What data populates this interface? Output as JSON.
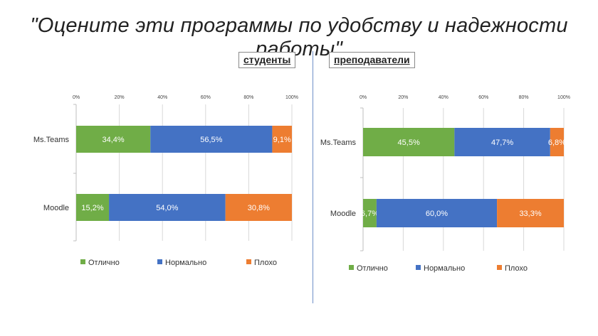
{
  "title": "\"Оцените эти программы по удобству и надежности работы\"",
  "colors": {
    "excellent": "#70ad47",
    "normal": "#4472c4",
    "bad": "#ed7d31"
  },
  "chart_data": [
    {
      "type": "bar",
      "stacked": "100%",
      "orientation": "horizontal",
      "title": "студенты",
      "x_ticks": [
        "0%",
        "20%",
        "40%",
        "60%",
        "80%",
        "100%"
      ],
      "xlim": [
        0,
        100
      ],
      "categories": [
        "Ms.Teams",
        "Moodle"
      ],
      "series": [
        {
          "name": "Отлично",
          "values": [
            34.4,
            15.2
          ],
          "labels": [
            "34,4%",
            "15,2%"
          ]
        },
        {
          "name": "Нормально",
          "values": [
            56.5,
            54.0
          ],
          "labels": [
            "56,5%",
            "54,0%"
          ]
        },
        {
          "name": "Плохо",
          "values": [
            9.1,
            30.8
          ],
          "labels": [
            "9,1%",
            "30,8%"
          ]
        }
      ],
      "legend": "bottom"
    },
    {
      "type": "bar",
      "stacked": "100%",
      "orientation": "horizontal",
      "title": "преподаватели",
      "x_ticks": [
        "0%",
        "20%",
        "40%",
        "60%",
        "80%",
        "100%"
      ],
      "xlim": [
        0,
        100
      ],
      "categories": [
        "Ms.Teams",
        "Moodle"
      ],
      "series": [
        {
          "name": "Отлично",
          "values": [
            45.5,
            6.7
          ],
          "labels": [
            "45,5%",
            "6,7%"
          ]
        },
        {
          "name": "Нормально",
          "values": [
            47.7,
            60.0
          ],
          "labels": [
            "47,7%",
            "60,0%"
          ]
        },
        {
          "name": "Плохо",
          "values": [
            6.8,
            33.3
          ],
          "labels": [
            "6,8%",
            "33,3%"
          ]
        }
      ],
      "legend": "bottom"
    }
  ]
}
